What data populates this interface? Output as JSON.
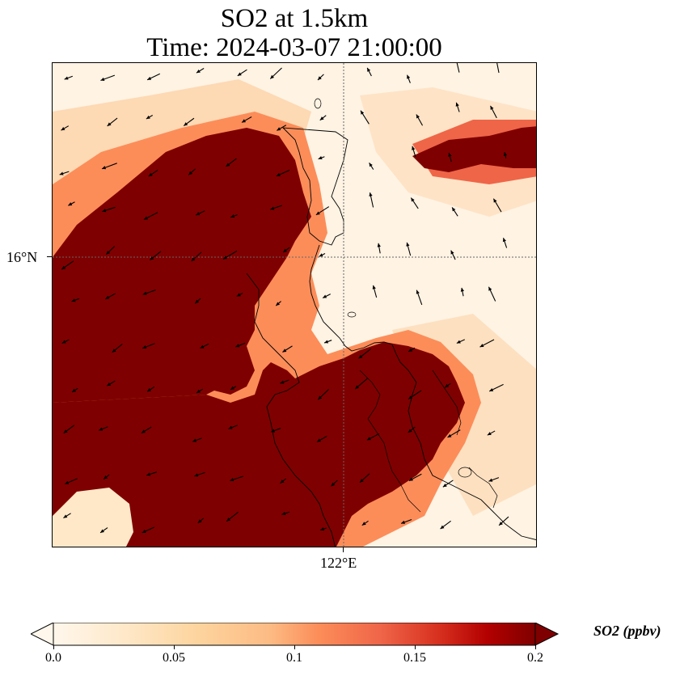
{
  "title_line1": "SO2 at 1.5km",
  "title_line2": "Time: 2024-03-07 21:00:00",
  "map": {
    "lat_label": "16°N",
    "lon_label": "122°E",
    "field_variable": "SO2",
    "field_level": "1.5km",
    "vectors": "wind arrows",
    "colormap": "OrRd",
    "color_low": "#fff7ec",
    "color_high": "#7f0000"
  },
  "colorbar": {
    "label": "SO2 (ppbv)",
    "min": 0.0,
    "max": 0.2,
    "extend": "both",
    "tick_labels": [
      "0.0",
      "0.05",
      "0.1",
      "0.15",
      "0.2"
    ],
    "tick_values": [
      0.0,
      0.05,
      0.1,
      0.15,
      0.2
    ]
  }
}
